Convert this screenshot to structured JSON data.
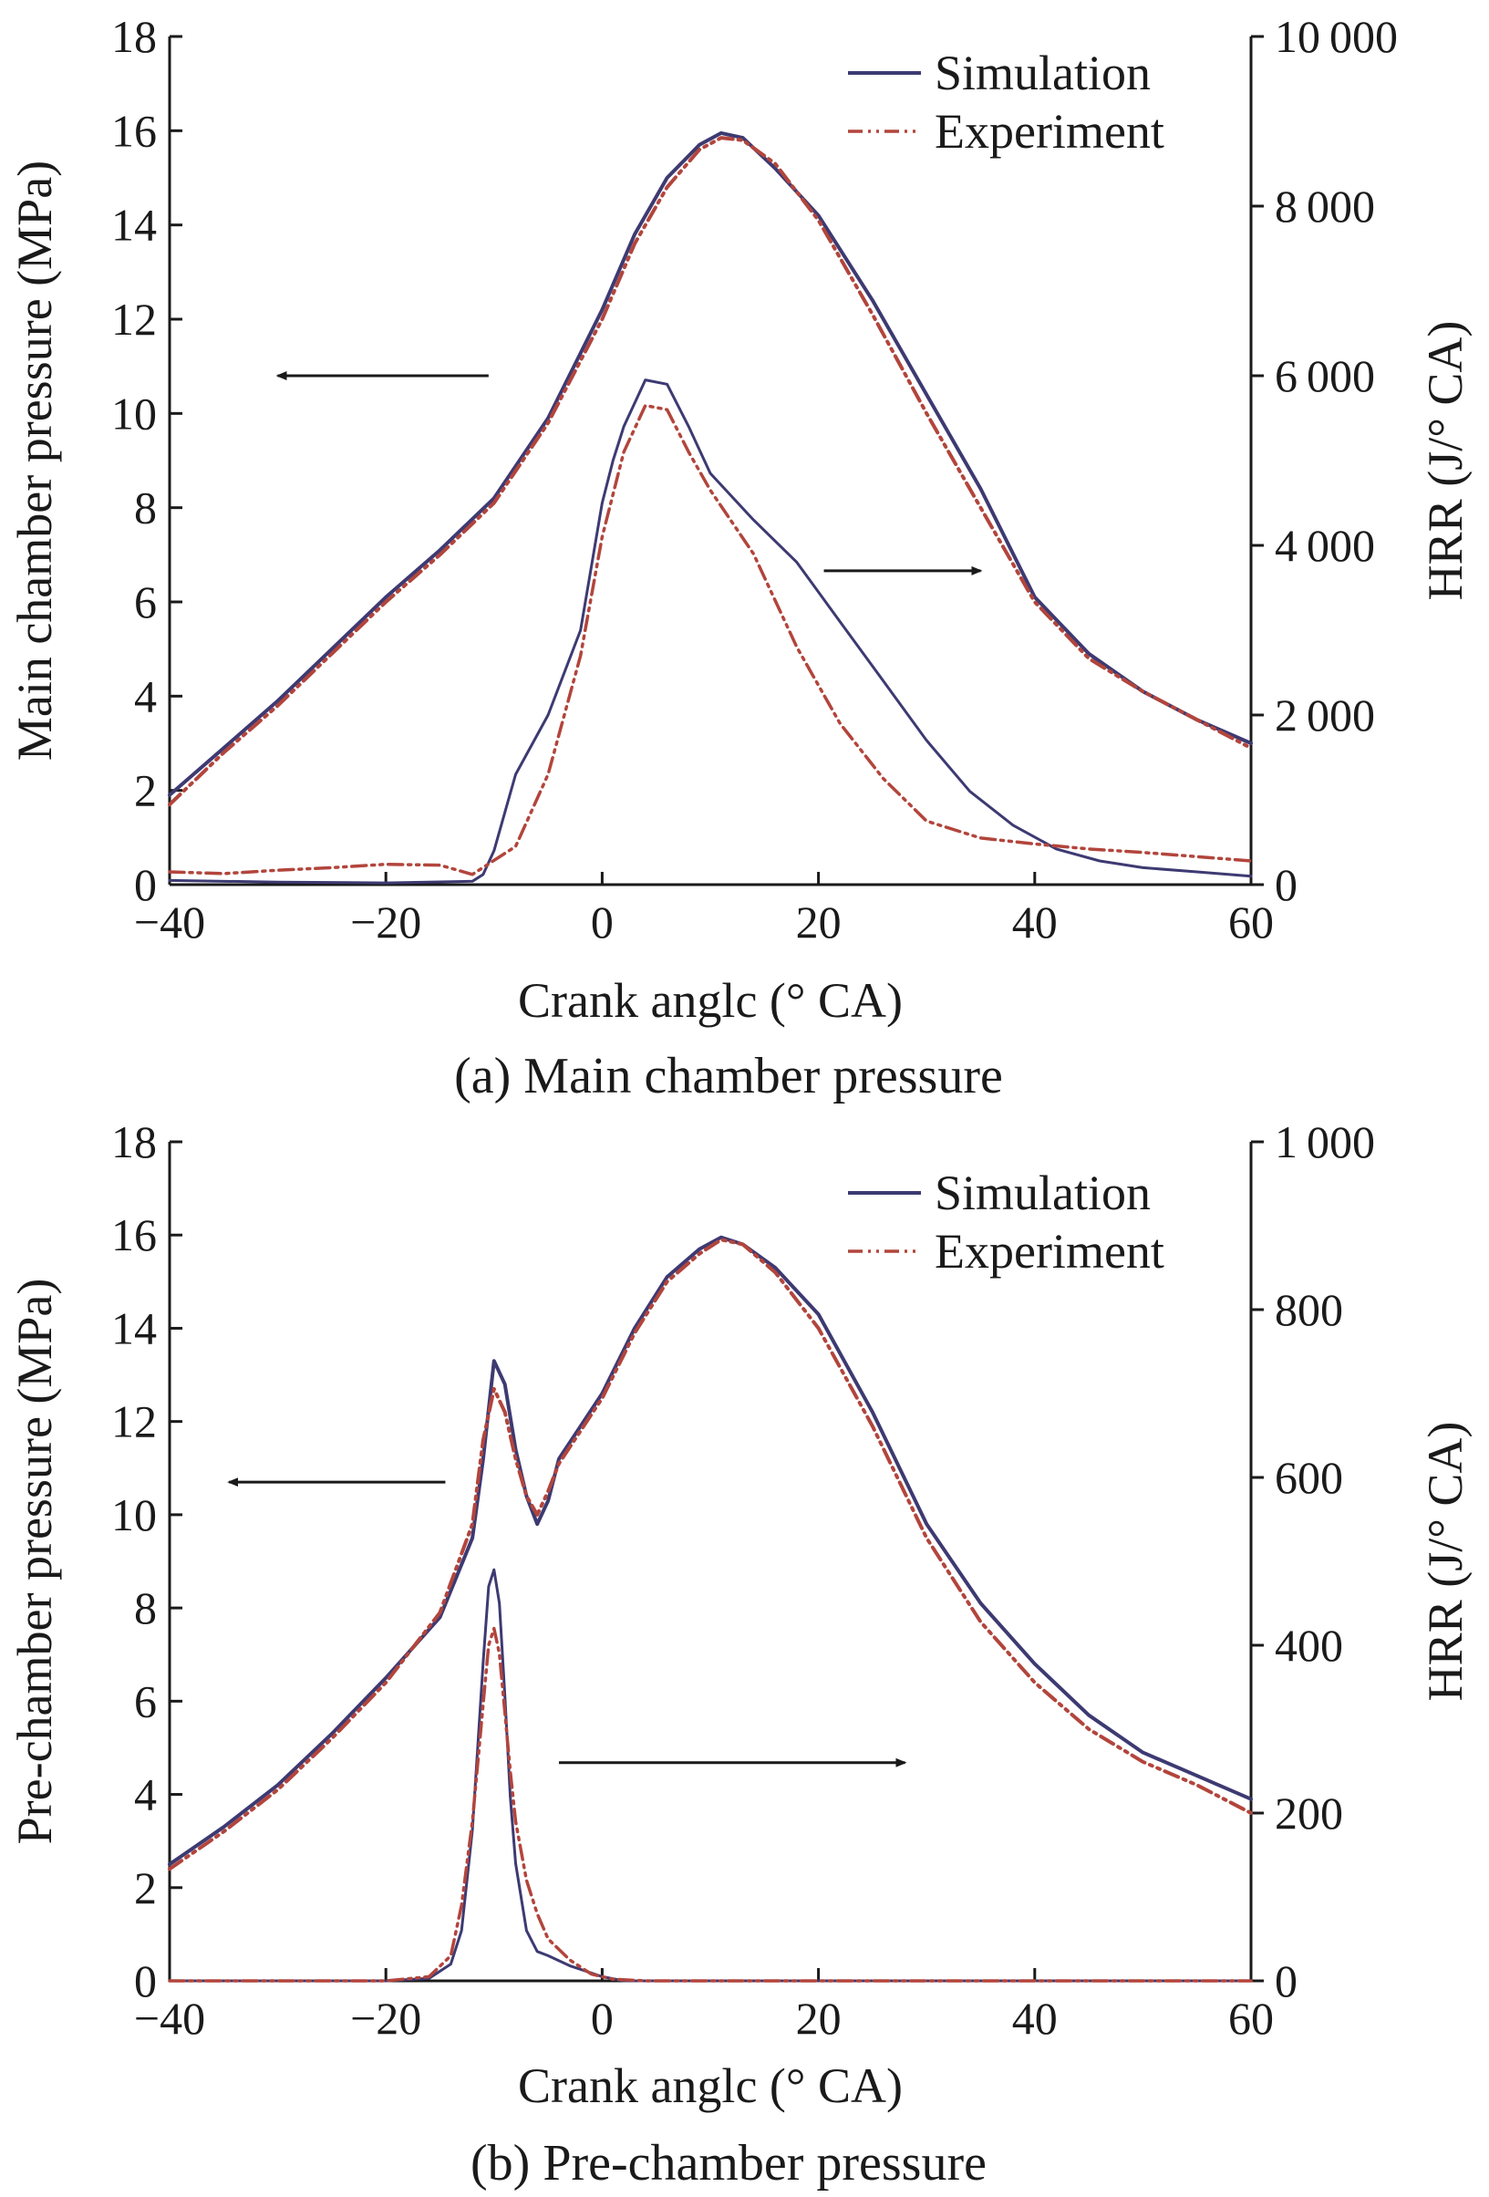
{
  "colors": {
    "simulation": "#3d3a72",
    "experiment": "#b2453c",
    "axis": "#1a1a1a"
  },
  "legend": {
    "simulation": "Simulation",
    "experiment": "Experiment",
    "position": "top-right"
  },
  "chart_data": [
    {
      "type": "line",
      "caption": "(a) Main chamber pressure",
      "xlabel": "Crank anglc (° CA)",
      "ylabel_left": "Main chamber pressure (MPa)",
      "ylabel_right": "HRR (J/° CA)",
      "xlim": [
        -40,
        60
      ],
      "ylim_left": [
        0,
        18
      ],
      "ylim_right": [
        0,
        10000
      ],
      "x_ticks": [
        -40,
        -20,
        0,
        20,
        40,
        60
      ],
      "x_tick_labels": [
        "−40",
        "−20",
        "0",
        "20",
        "40",
        "60"
      ],
      "y_left_ticks": [
        0,
        2,
        4,
        6,
        8,
        10,
        12,
        14,
        16,
        18
      ],
      "y_left_tick_labels": [
        "0",
        "2",
        "4",
        "6",
        "8",
        "10",
        "12",
        "14",
        "16",
        "18"
      ],
      "y_right_ticks": [
        0,
        2000,
        4000,
        6000,
        8000,
        10000
      ],
      "y_right_tick_labels": [
        "0",
        "2 000",
        "4 000",
        "6 000",
        "8 000",
        "10 000"
      ],
      "arrows": [
        {
          "axis": "left",
          "from": [
            -10.5,
            10.8
          ],
          "to": [
            -30,
            10.8
          ]
        },
        {
          "axis": "right",
          "from": [
            20.5,
            3700
          ],
          "to": [
            35,
            3700
          ]
        }
      ],
      "series": [
        {
          "name": "Simulation",
          "kind": "pressure",
          "axis": "left",
          "x": [
            -40,
            -35,
            -30,
            -25,
            -20,
            -15,
            -10,
            -5,
            0,
            3,
            6,
            9,
            11,
            13,
            16,
            20,
            25,
            30,
            35,
            40,
            45,
            50,
            55,
            60
          ],
          "y": [
            1.9,
            2.9,
            3.9,
            5.0,
            6.1,
            7.1,
            8.2,
            9.9,
            12.2,
            13.8,
            15.0,
            15.7,
            15.95,
            15.85,
            15.2,
            14.2,
            12.4,
            10.4,
            8.4,
            6.1,
            4.9,
            4.1,
            3.5,
            3.0
          ]
        },
        {
          "name": "Experiment",
          "kind": "pressure",
          "axis": "left",
          "x": [
            -40,
            -35,
            -30,
            -25,
            -20,
            -15,
            -10,
            -5,
            0,
            3,
            6,
            9,
            11,
            13,
            16,
            20,
            25,
            30,
            35,
            40,
            45,
            50,
            55,
            60
          ],
          "y": [
            1.7,
            2.8,
            3.8,
            4.9,
            6.0,
            7.0,
            8.1,
            9.8,
            12.0,
            13.6,
            14.8,
            15.6,
            15.85,
            15.8,
            15.3,
            14.1,
            12.1,
            10.0,
            8.0,
            6.0,
            4.8,
            4.1,
            3.5,
            2.9
          ]
        },
        {
          "name": "Simulation",
          "kind": "hrr",
          "axis": "right",
          "x": [
            -40,
            -30,
            -20,
            -12,
            -11,
            -10,
            -8,
            -5,
            -2,
            0,
            1,
            2,
            4,
            6,
            8,
            10,
            14,
            18,
            22,
            26,
            30,
            34,
            38,
            42,
            46,
            50,
            55,
            60
          ],
          "y": [
            50,
            30,
            20,
            40,
            120,
            400,
            1300,
            2000,
            3000,
            4500,
            5000,
            5400,
            5950,
            5900,
            5400,
            4850,
            4300,
            3800,
            3100,
            2400,
            1700,
            1100,
            700,
            420,
            280,
            200,
            150,
            100
          ]
        },
        {
          "name": "Experiment",
          "kind": "hrr",
          "axis": "right",
          "x": [
            -40,
            -35,
            -30,
            -25,
            -20,
            -15,
            -12,
            -8,
            -5,
            -2,
            0,
            2,
            4,
            6,
            8,
            10,
            14,
            18,
            22,
            26,
            30,
            35,
            40,
            45,
            50,
            55,
            60
          ],
          "y": [
            150,
            130,
            170,
            200,
            240,
            230,
            120,
            450,
            1300,
            2700,
            4100,
            5100,
            5650,
            5600,
            5100,
            4650,
            3900,
            2800,
            1900,
            1250,
            750,
            550,
            480,
            420,
            380,
            330,
            280
          ]
        }
      ]
    },
    {
      "type": "line",
      "caption": "(b) Pre-chamber pressure",
      "xlabel": "Crank anglc (° CA)",
      "ylabel_left": "Pre-chamber pressure (MPa)",
      "ylabel_right": "HRR (J/° CA)",
      "xlim": [
        -40,
        60
      ],
      "ylim_left": [
        0,
        18
      ],
      "ylim_right": [
        0,
        1000
      ],
      "x_ticks": [
        -40,
        -20,
        0,
        20,
        40,
        60
      ],
      "x_tick_labels": [
        "−40",
        "−20",
        "0",
        "20",
        "40",
        "60"
      ],
      "y_left_ticks": [
        0,
        2,
        4,
        6,
        8,
        10,
        12,
        14,
        16,
        18
      ],
      "y_left_tick_labels": [
        "0",
        "2",
        "4",
        "6",
        "8",
        "10",
        "12",
        "14",
        "16",
        "18"
      ],
      "y_right_ticks": [
        0,
        200,
        400,
        600,
        800,
        1000
      ],
      "y_right_tick_labels": [
        "0",
        "200",
        "400",
        "600",
        "800",
        "1 000"
      ],
      "arrows": [
        {
          "axis": "left",
          "from": [
            -14.5,
            10.7
          ],
          "to": [
            -34.5,
            10.7
          ]
        },
        {
          "axis": "right",
          "from": [
            -4,
            260
          ],
          "to": [
            28,
            260
          ]
        }
      ],
      "series": [
        {
          "name": "Simulation",
          "kind": "pressure",
          "axis": "left",
          "x": [
            -40,
            -35,
            -30,
            -25,
            -20,
            -15,
            -12,
            -11,
            -10,
            -9,
            -8,
            -7,
            -6,
            -5,
            -4,
            -2,
            0,
            3,
            6,
            9,
            11,
            13,
            16,
            20,
            25,
            30,
            35,
            40,
            45,
            50,
            55,
            60
          ],
          "y": [
            2.5,
            3.3,
            4.2,
            5.3,
            6.5,
            7.8,
            9.5,
            11.2,
            13.3,
            12.8,
            11.4,
            10.4,
            9.8,
            10.3,
            11.2,
            11.9,
            12.6,
            14.0,
            15.1,
            15.7,
            15.95,
            15.8,
            15.3,
            14.3,
            12.2,
            9.8,
            8.1,
            6.8,
            5.7,
            4.9,
            4.4,
            3.9
          ]
        },
        {
          "name": "Experiment",
          "kind": "pressure",
          "axis": "left",
          "x": [
            -40,
            -35,
            -30,
            -25,
            -20,
            -15,
            -12,
            -11,
            -10,
            -9,
            -8,
            -7,
            -6,
            -5,
            -4,
            -2,
            0,
            3,
            6,
            9,
            11,
            13,
            16,
            20,
            25,
            30,
            35,
            40,
            45,
            50,
            55,
            60
          ],
          "y": [
            2.4,
            3.2,
            4.1,
            5.2,
            6.4,
            7.9,
            9.8,
            11.6,
            12.7,
            12.2,
            11.2,
            10.4,
            10.0,
            10.5,
            11.1,
            11.8,
            12.5,
            13.9,
            15.0,
            15.6,
            15.9,
            15.8,
            15.2,
            14.0,
            11.9,
            9.5,
            7.7,
            6.4,
            5.4,
            4.7,
            4.2,
            3.6
          ]
        },
        {
          "name": "Simulation",
          "kind": "hrr",
          "axis": "right",
          "x": [
            -40,
            -20,
            -16,
            -14,
            -13,
            -12,
            -11,
            -10.5,
            -10,
            -9.5,
            -9,
            -8.5,
            -8,
            -7,
            -6,
            -5,
            -3,
            0,
            2,
            5,
            60
          ],
          "y": [
            0,
            0,
            3,
            20,
            60,
            180,
            380,
            470,
            490,
            450,
            340,
            220,
            140,
            60,
            35,
            30,
            18,
            5,
            0,
            0,
            0
          ]
        },
        {
          "name": "Experiment",
          "kind": "hrr",
          "axis": "right",
          "x": [
            -40,
            -20,
            -16,
            -14,
            -13,
            -12,
            -11,
            -10.5,
            -10,
            -9.5,
            -9,
            -8.5,
            -8,
            -7,
            -6,
            -5,
            -3,
            -1,
            1,
            4,
            60
          ],
          "y": [
            0,
            0,
            5,
            30,
            90,
            190,
            330,
            400,
            420,
            390,
            320,
            250,
            190,
            120,
            80,
            50,
            25,
            8,
            2,
            0,
            0
          ]
        }
      ]
    }
  ]
}
